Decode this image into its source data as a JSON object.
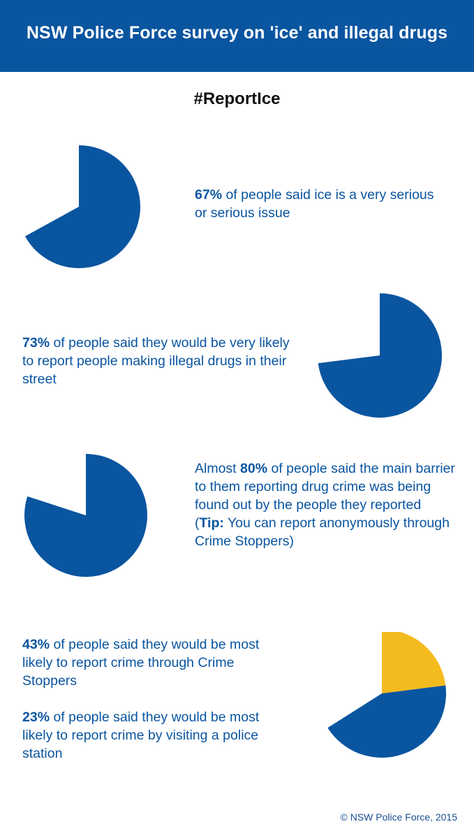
{
  "header": {
    "title": "NSW Police Force survey on 'ice' and illegal drugs"
  },
  "hashtag": "#ReportIce",
  "colors": {
    "brand_blue": "#0a55a0",
    "accent_yellow": "#f4bb1e",
    "background": "#ffffff"
  },
  "stats": [
    {
      "pct": "67%",
      "text": " of people said ice is a very serious or serious issue"
    },
    {
      "pct": "73%",
      "text": " of people said they would be very likely to report people making illegal drugs in their street"
    },
    {
      "prefix": "Almost ",
      "pct": "80%",
      "text": " of people said the main barrier to them reporting drug crime was being found out by the people they reported",
      "tip_open": "(",
      "tip_label": "Tip:",
      "tip_text": " You can report anonymously through Crime Stoppers)"
    },
    {
      "pct": "43%",
      "text": " of people said they would be most likely to report crime through Crime Stoppers"
    },
    {
      "pct": "23%",
      "text": " of people said they would be most likely to report crime by visiting a police station"
    }
  ],
  "chart_data": [
    {
      "type": "pie",
      "slices": [
        {
          "label": "",
          "value": 67,
          "color": "#0a55a0"
        }
      ]
    },
    {
      "type": "pie",
      "slices": [
        {
          "label": "",
          "value": 73,
          "color": "#0a55a0"
        }
      ]
    },
    {
      "type": "pie",
      "slices": [
        {
          "label": "",
          "value": 80,
          "color": "#0a55a0"
        }
      ]
    },
    {
      "type": "pie",
      "slices": [
        {
          "label": "",
          "value": 43,
          "color": "#0a55a0"
        },
        {
          "label": "",
          "value": 23,
          "color": "#f4bb1e"
        }
      ]
    }
  ],
  "footer": {
    "copyright": "© NSW Police Force, 2015"
  }
}
